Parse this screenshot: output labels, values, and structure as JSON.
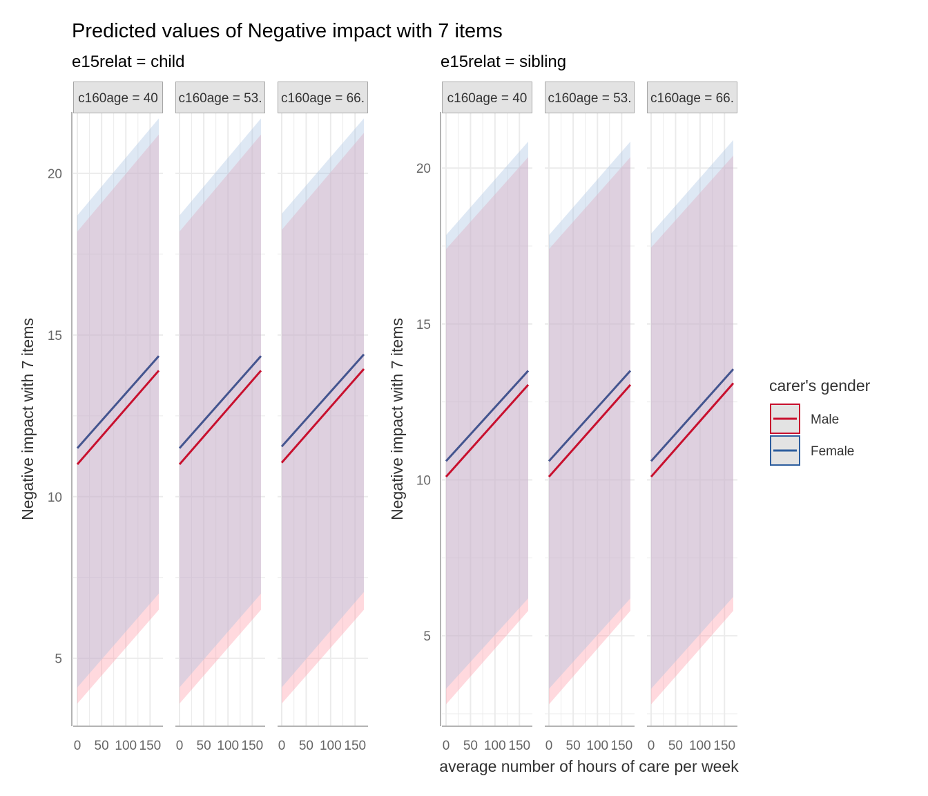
{
  "chart_data": {
    "type": "line",
    "title": "Predicted values of Negative impact with 7 items",
    "xlabel": "average number of hours of care per week",
    "ylabel": "Negative impact with 7 items",
    "x_ticks": [
      0,
      50,
      100,
      150
    ],
    "x_tick_labels": [
      "0",
      "50",
      "100",
      "150"
    ],
    "x_range": [
      0,
      168
    ],
    "legend": {
      "title": "carer's gender",
      "position": "right",
      "entries": [
        {
          "name": "Male",
          "color": "#C8102E"
        },
        {
          "name": "Female",
          "color": "#2E5E9E"
        }
      ]
    },
    "line_colors": {
      "Male": "#C8102E",
      "Female": "#44558F"
    },
    "band_colors": {
      "Male": "#FF9AA8",
      "Female": "#A9C3E3"
    },
    "groups": [
      {
        "label": "e15relat = child",
        "ylim": [
          2.9,
          21.9
        ],
        "y_ticks": [
          5,
          10,
          15,
          20
        ],
        "y_tick_labels": [
          "5",
          "10",
          "15",
          "20"
        ],
        "panels": [
          {
            "strip": "c160age = 40",
            "series": [
              {
                "name": "Male",
                "x": [
                  0,
                  168
                ],
                "y": [
                  11.0,
                  13.9
                ],
                "lower": [
                  3.6,
                  6.5
                ],
                "upper": [
                  18.2,
                  21.2
                ]
              },
              {
                "name": "Female",
                "x": [
                  0,
                  168
                ],
                "y": [
                  11.5,
                  14.35
                ],
                "lower": [
                  4.1,
                  7.0
                ],
                "upper": [
                  18.7,
                  21.7
                ]
              }
            ]
          },
          {
            "strip": "c160age = 53.",
            "series": [
              {
                "name": "Male",
                "x": [
                  0,
                  168
                ],
                "y": [
                  11.0,
                  13.9
                ],
                "lower": [
                  3.6,
                  6.5
                ],
                "upper": [
                  18.2,
                  21.2
                ]
              },
              {
                "name": "Female",
                "x": [
                  0,
                  168
                ],
                "y": [
                  11.5,
                  14.35
                ],
                "lower": [
                  4.1,
                  7.0
                ],
                "upper": [
                  18.7,
                  21.7
                ]
              }
            ]
          },
          {
            "strip": "c160age = 66.",
            "series": [
              {
                "name": "Male",
                "x": [
                  0,
                  168
                ],
                "y": [
                  11.05,
                  13.95
                ],
                "lower": [
                  3.6,
                  6.5
                ],
                "upper": [
                  18.25,
                  21.25
                ]
              },
              {
                "name": "Female",
                "x": [
                  0,
                  168
                ],
                "y": [
                  11.55,
                  14.4
                ],
                "lower": [
                  4.1,
                  7.05
                ],
                "upper": [
                  18.75,
                  21.7
                ]
              }
            ]
          }
        ]
      },
      {
        "label": "e15relat = sibling",
        "ylim": [
          2.1,
          21.8
        ],
        "y_ticks": [
          5,
          10,
          15,
          20
        ],
        "y_tick_labels": [
          "5",
          "10",
          "15",
          "20"
        ],
        "panels": [
          {
            "strip": "c160age = 40",
            "series": [
              {
                "name": "Male",
                "x": [
                  0,
                  168
                ],
                "y": [
                  10.1,
                  13.05
                ],
                "lower": [
                  2.8,
                  5.8
                ],
                "upper": [
                  17.4,
                  20.35
                ]
              },
              {
                "name": "Female",
                "x": [
                  0,
                  168
                ],
                "y": [
                  10.6,
                  13.5
                ],
                "lower": [
                  3.3,
                  6.2
                ],
                "upper": [
                  17.85,
                  20.85
                ]
              }
            ]
          },
          {
            "strip": "c160age = 53.",
            "series": [
              {
                "name": "Male",
                "x": [
                  0,
                  168
                ],
                "y": [
                  10.1,
                  13.05
                ],
                "lower": [
                  2.8,
                  5.8
                ],
                "upper": [
                  17.4,
                  20.35
                ]
              },
              {
                "name": "Female",
                "x": [
                  0,
                  168
                ],
                "y": [
                  10.6,
                  13.5
                ],
                "lower": [
                  3.3,
                  6.2
                ],
                "upper": [
                  17.85,
                  20.85
                ]
              }
            ]
          },
          {
            "strip": "c160age = 66.",
            "series": [
              {
                "name": "Male",
                "x": [
                  0,
                  168
                ],
                "y": [
                  10.1,
                  13.1
                ],
                "lower": [
                  2.8,
                  5.8
                ],
                "upper": [
                  17.45,
                  20.4
                ]
              },
              {
                "name": "Female",
                "x": [
                  0,
                  168
                ],
                "y": [
                  10.6,
                  13.55
                ],
                "lower": [
                  3.3,
                  6.25
                ],
                "upper": [
                  17.9,
                  20.9
                ]
              }
            ]
          }
        ]
      }
    ]
  }
}
